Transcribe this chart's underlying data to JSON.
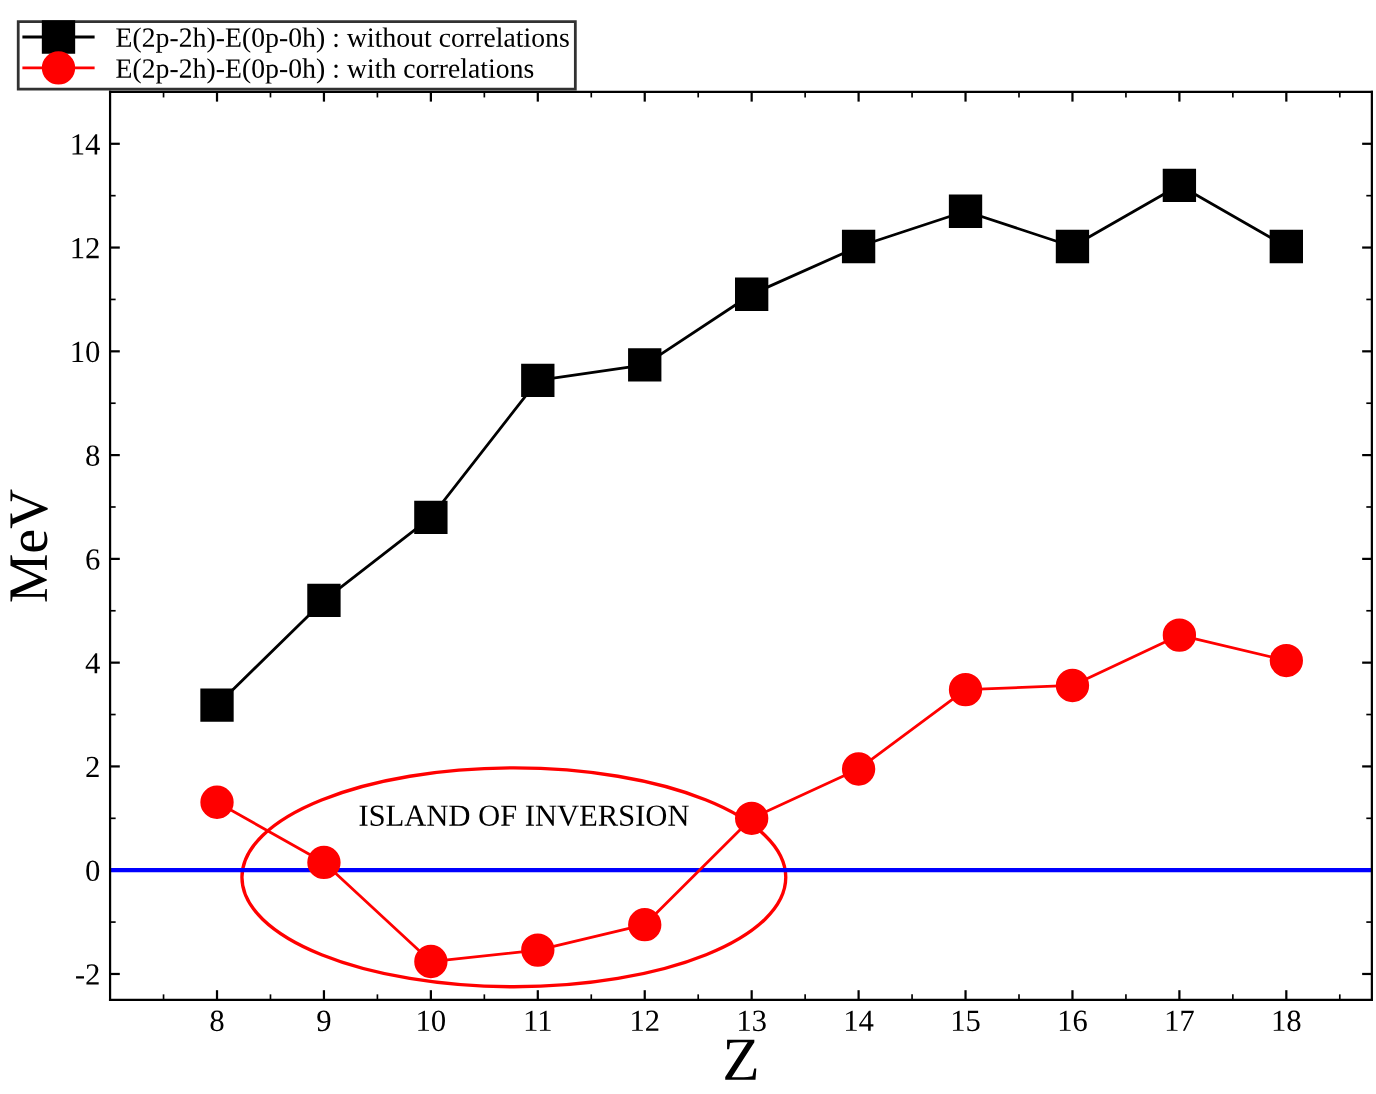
{
  "chart_data": {
    "type": "line",
    "xlabel": "Z",
    "ylabel": "MeV",
    "x": [
      8,
      9,
      10,
      11,
      12,
      13,
      14,
      15,
      16,
      17,
      18
    ],
    "series": [
      {
        "name": "E(2p-2h)-E(0p-0h) : without correlations",
        "color": "#000000",
        "marker": "square",
        "values": [
          3.18,
          5.2,
          6.8,
          9.44,
          9.74,
          11.1,
          12.02,
          12.7,
          12.02,
          13.2,
          12.02
        ]
      },
      {
        "name": "E(2p-2h)-E(0p-0h) : with correlations",
        "color": "#ff0000",
        "marker": "circle",
        "values": [
          1.31,
          0.15,
          -1.76,
          -1.54,
          -1.05,
          1.0,
          1.95,
          3.48,
          3.56,
          4.53,
          4.04
        ]
      }
    ],
    "xlim": [
      7,
      18.8
    ],
    "xticks": [
      8,
      9,
      10,
      11,
      12,
      13,
      14,
      15,
      16,
      17,
      18
    ],
    "ylim": [
      -2.5,
      15
    ],
    "yticks": [
      -2,
      0,
      2,
      4,
      6,
      8,
      10,
      12,
      14
    ],
    "ref_lines": [
      {
        "axis": "y",
        "value": 0,
        "color": "#0000ff"
      }
    ],
    "annotations": [
      "ISLAND OF INVERSION"
    ],
    "legend": "top left",
    "grid": false
  }
}
